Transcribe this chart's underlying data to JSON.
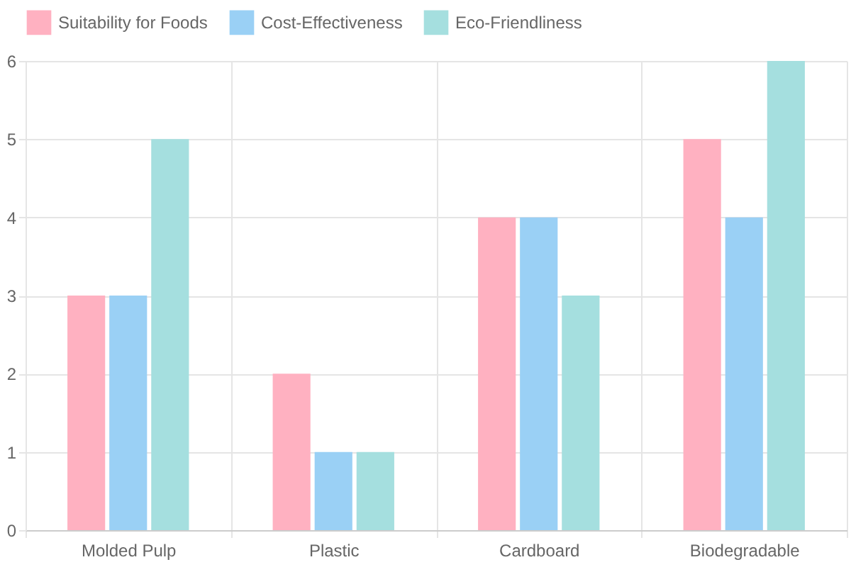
{
  "chart_data": {
    "type": "bar",
    "categories": [
      "Molded Pulp",
      "Plastic",
      "Cardboard",
      "Biodegradable"
    ],
    "series": [
      {
        "name": "Suitability for Foods",
        "color": "#ffb1c1",
        "values": [
          3,
          2,
          4,
          5
        ]
      },
      {
        "name": "Cost-Effectiveness",
        "color": "#9ad0f5",
        "values": [
          3,
          1,
          4,
          4
        ]
      },
      {
        "name": "Eco-Friendliness",
        "color": "#a5dfdf",
        "values": [
          5,
          1,
          3,
          6
        ]
      }
    ],
    "ylim": [
      0,
      6
    ],
    "yticks": [
      0,
      1,
      2,
      3,
      4,
      5,
      6
    ],
    "grid": true,
    "legend": "top"
  }
}
